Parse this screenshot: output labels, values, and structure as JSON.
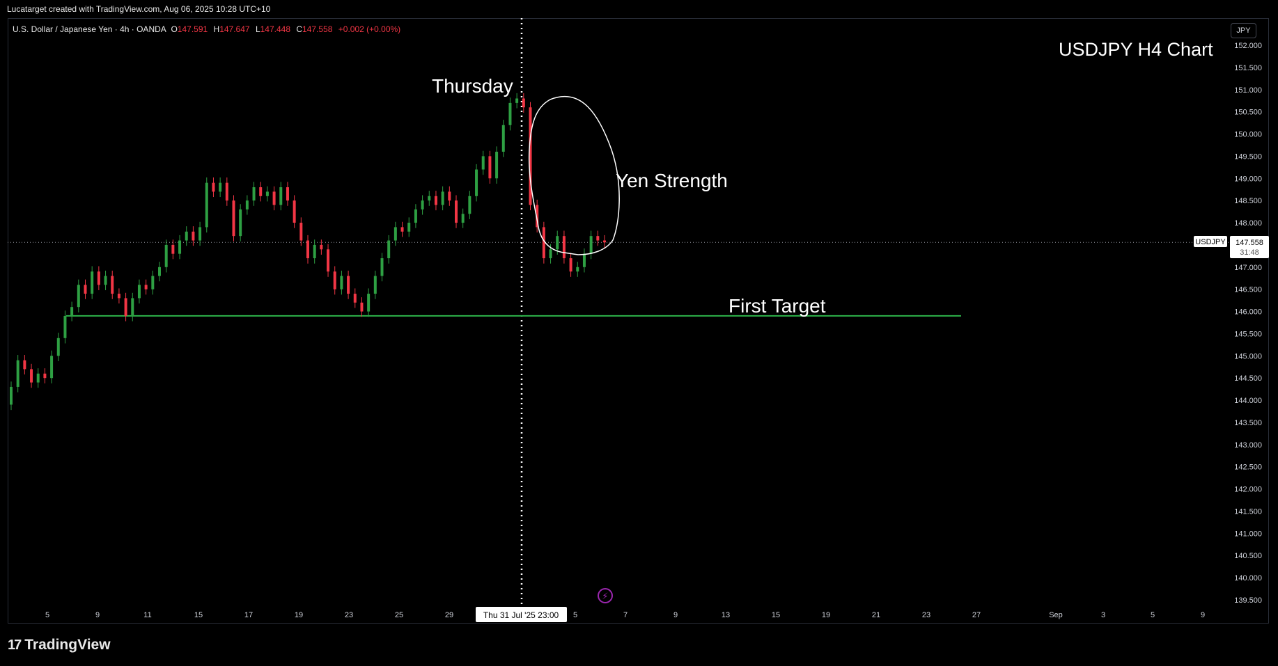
{
  "header": {
    "credit": "Lucatarget created with TradingView.com, Aug 06, 2025 10:28 UTC+10",
    "symbol_desc": "U.S. Dollar / Japanese Yen · 4h · OANDA",
    "ohlc": {
      "o_label": "O",
      "o": "147.591",
      "h_label": "H",
      "h": "147.647",
      "l_label": "L",
      "l": "147.448",
      "c_label": "C",
      "c": "147.558",
      "change": "+0.002 (+0.00%)"
    },
    "currency": "JPY"
  },
  "price_tag": {
    "symbol": "USDJPY",
    "price": "147.558",
    "countdown": "31:48"
  },
  "footer": {
    "brand": "TradingView"
  },
  "colors": {
    "up": "#089981",
    "up_body": "#2ea043",
    "down": "#f23645",
    "target_line": "#2db34a",
    "grid_text": "#d1d4dc",
    "background": "#000000"
  },
  "chart_data": {
    "type": "candlestick",
    "title": "USDJPY H4 Chart",
    "symbol": "USDJPY",
    "timeframe": "4h",
    "ylim": [
      139.3,
      152.4
    ],
    "y_ticks": [
      "152.000",
      "151.500",
      "151.000",
      "150.500",
      "150.000",
      "149.500",
      "149.000",
      "148.500",
      "148.000",
      "147.500",
      "147.000",
      "146.500",
      "146.000",
      "145.500",
      "145.000",
      "144.500",
      "144.000",
      "143.500",
      "143.000",
      "142.500",
      "142.000",
      "141.500",
      "141.000",
      "140.500",
      "140.000",
      "139.500"
    ],
    "x_ticks": [
      "5",
      "9",
      "11",
      "15",
      "17",
      "19",
      "23",
      "25",
      "29",
      "5",
      "7",
      "9",
      "13",
      "15",
      "19",
      "21",
      "23",
      "27",
      "Sep",
      "3",
      "5",
      "9"
    ],
    "x_crosshair_label": "Thu 31 Jul '25   23:00",
    "last_price": 147.558,
    "horizontal_lines": [
      {
        "value": 145.9,
        "label": "First Target"
      }
    ],
    "annotations": [
      {
        "text": "Thursday"
      },
      {
        "text": "Yen Strength"
      },
      {
        "text": "First Target"
      }
    ],
    "candle_path_close": [
      144.3,
      144.9,
      144.7,
      144.4,
      144.6,
      144.5,
      145.0,
      145.4,
      145.9,
      146.1,
      146.6,
      146.4,
      146.9,
      146.6,
      146.8,
      146.4,
      146.3,
      145.9,
      146.3,
      146.6,
      146.5,
      146.8,
      147.0,
      147.5,
      147.3,
      147.6,
      147.8,
      147.6,
      147.9,
      148.9,
      148.7,
      148.9,
      148.5,
      147.7,
      148.3,
      148.5,
      148.8,
      148.6,
      148.7,
      148.4,
      148.8,
      148.5,
      148.0,
      147.6,
      147.2,
      147.5,
      147.4,
      146.9,
      146.5,
      146.8,
      146.4,
      146.2,
      146.0,
      146.4,
      146.8,
      147.2,
      147.6,
      147.9,
      147.8,
      148.0,
      148.3,
      148.5,
      148.6,
      148.4,
      148.7,
      148.5,
      148.0,
      148.2,
      148.6,
      149.2,
      149.5,
      149.0,
      149.6,
      150.2,
      150.7,
      150.8,
      150.6,
      148.4,
      147.9,
      147.2,
      147.4,
      147.7,
      147.2,
      146.9,
      147.0,
      147.3,
      147.7,
      147.6,
      147.558
    ]
  }
}
